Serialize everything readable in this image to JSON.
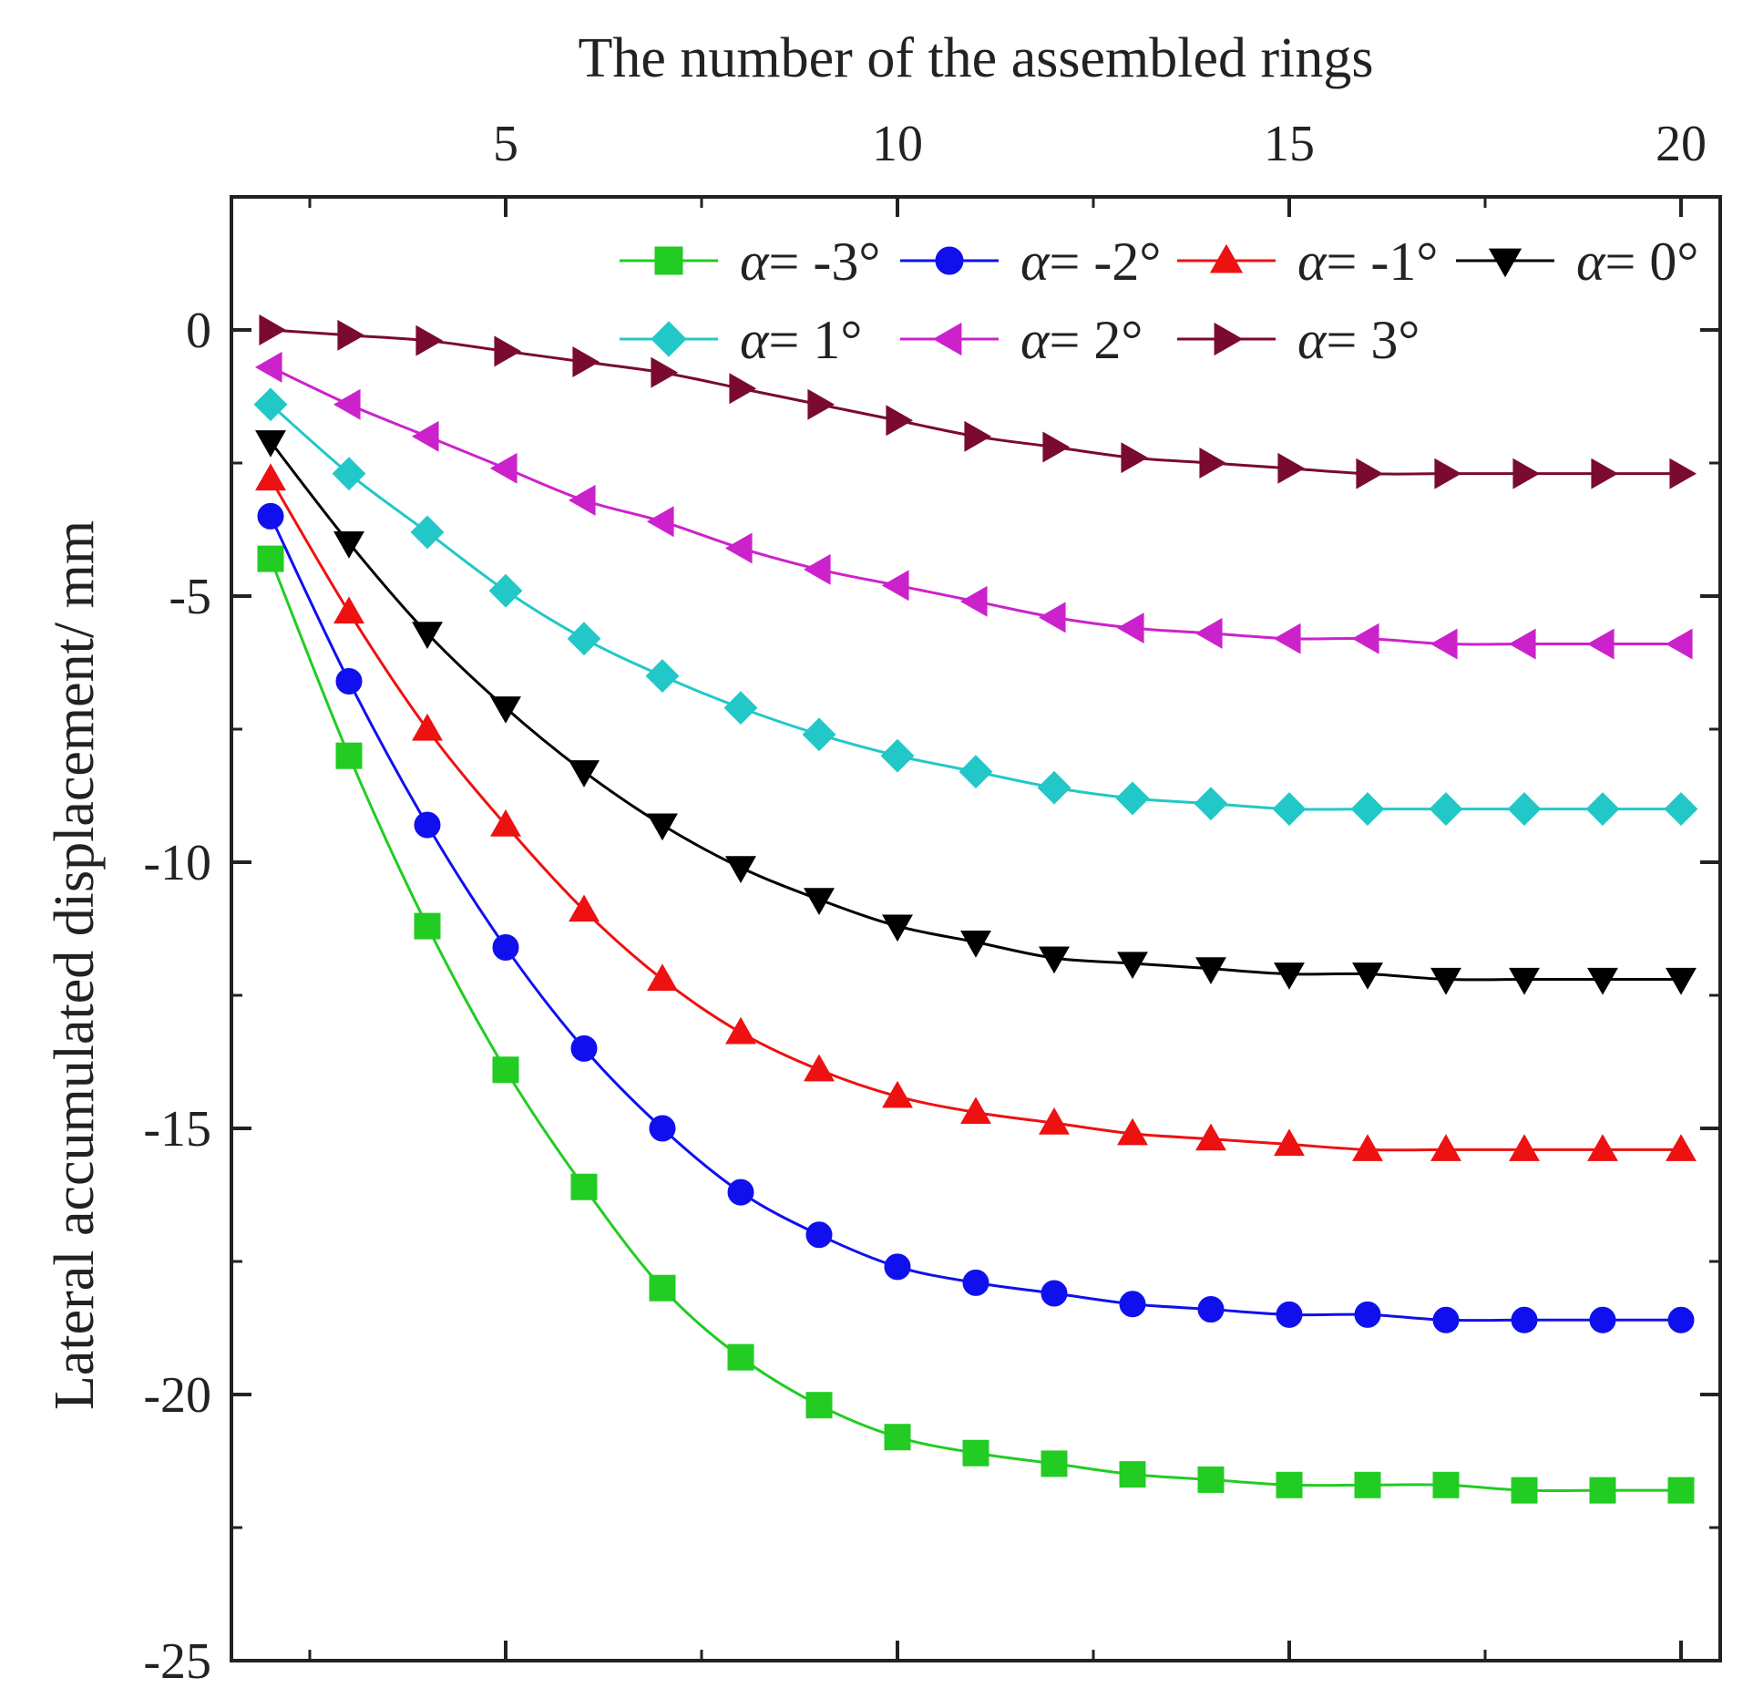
{
  "chart_data": {
    "type": "line",
    "title": "",
    "xlabel": "The number of the assembled rings",
    "ylabel": "Lateral accumulated displacement/ mm",
    "x_axis_position": "top",
    "xlim": [
      1.5,
      20.5
    ],
    "ylim": [
      -25,
      2.5
    ],
    "xticks": [
      5,
      10,
      15,
      20
    ],
    "xtick_labels": [
      "5",
      "10",
      "15",
      "20"
    ],
    "yticks": [
      0,
      -5,
      -10,
      -15,
      -20,
      -25
    ],
    "ytick_labels": [
      "0",
      "-5",
      "-10",
      "-15",
      "-20",
      "-25"
    ],
    "grid": false,
    "legend_position": "top-right",
    "x": [
      2,
      3,
      4,
      5,
      6,
      7,
      8,
      9,
      10,
      11,
      12,
      13,
      14,
      15,
      16,
      17,
      18,
      19,
      20
    ],
    "series": [
      {
        "name": "α= -3°",
        "alpha_symbol": "α",
        "alpha_value": "= -3°",
        "color": "#22cc22",
        "marker": "square",
        "values": [
          -4.3,
          -8.0,
          -11.2,
          -13.9,
          -16.1,
          -18.0,
          -19.3,
          -20.2,
          -20.8,
          -21.1,
          -21.3,
          -21.5,
          -21.6,
          -21.7,
          -21.7,
          -21.7,
          -21.8,
          -21.8,
          -21.8
        ]
      },
      {
        "name": "α= -2°",
        "alpha_symbol": "α",
        "alpha_value": "= -2°",
        "color": "#1010ee",
        "marker": "circle",
        "values": [
          -3.5,
          -6.6,
          -9.3,
          -11.6,
          -13.5,
          -15.0,
          -16.2,
          -17.0,
          -17.6,
          -17.9,
          -18.1,
          -18.3,
          -18.4,
          -18.5,
          -18.5,
          -18.6,
          -18.6,
          -18.6,
          -18.6
        ]
      },
      {
        "name": "α= -1°",
        "alpha_symbol": "α",
        "alpha_value": "= -1°",
        "color": "#ee1111",
        "marker": "triangle-up",
        "values": [
          -2.8,
          -5.3,
          -7.5,
          -9.3,
          -10.9,
          -12.2,
          -13.2,
          -13.9,
          -14.4,
          -14.7,
          -14.9,
          -15.1,
          -15.2,
          -15.3,
          -15.4,
          -15.4,
          -15.4,
          -15.4,
          -15.4
        ]
      },
      {
        "name": "α= 0°",
        "alpha_symbol": "α",
        "alpha_value": "= 0°",
        "color": "#000000",
        "marker": "triangle-down",
        "values": [
          -2.1,
          -4.0,
          -5.7,
          -7.1,
          -8.3,
          -9.3,
          -10.1,
          -10.7,
          -11.2,
          -11.5,
          -11.8,
          -11.9,
          -12.0,
          -12.1,
          -12.1,
          -12.2,
          -12.2,
          -12.2,
          -12.2
        ]
      },
      {
        "name": "α= 1°",
        "alpha_symbol": "α",
        "alpha_value": "= 1°",
        "color": "#22c8c8",
        "marker": "diamond",
        "values": [
          -1.4,
          -2.7,
          -3.8,
          -4.9,
          -5.8,
          -6.5,
          -7.1,
          -7.6,
          -8.0,
          -8.3,
          -8.6,
          -8.8,
          -8.9,
          -9.0,
          -9.0,
          -9.0,
          -9.0,
          -9.0,
          -9.0
        ]
      },
      {
        "name": "α= 2°",
        "alpha_symbol": "α",
        "alpha_value": "= 2°",
        "color": "#cc22cc",
        "marker": "triangle-left",
        "values": [
          -0.7,
          -1.4,
          -2.0,
          -2.6,
          -3.2,
          -3.6,
          -4.1,
          -4.5,
          -4.8,
          -5.1,
          -5.4,
          -5.6,
          -5.7,
          -5.8,
          -5.8,
          -5.9,
          -5.9,
          -5.9,
          -5.9
        ]
      },
      {
        "name": "α= 3°",
        "alpha_symbol": "α",
        "alpha_value": "= 3°",
        "color": "#7a0a2e",
        "marker": "triangle-right",
        "values": [
          0.0,
          -0.1,
          -0.2,
          -0.4,
          -0.6,
          -0.8,
          -1.1,
          -1.4,
          -1.7,
          -2.0,
          -2.2,
          -2.4,
          -2.5,
          -2.6,
          -2.7,
          -2.7,
          -2.7,
          -2.7,
          -2.7
        ]
      }
    ]
  }
}
